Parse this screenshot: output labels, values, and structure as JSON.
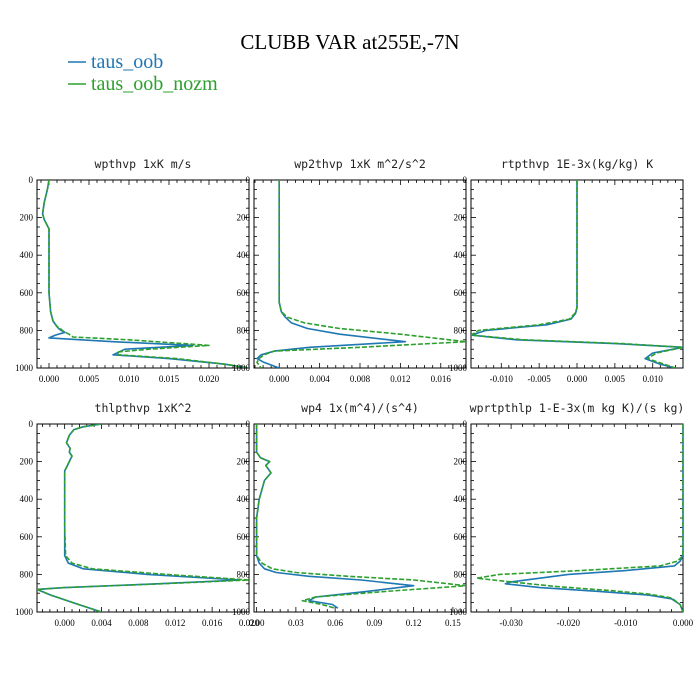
{
  "figure": {
    "title": "CLUBB VAR at255E,-7N"
  },
  "legend": [
    {
      "label": "taus_oob",
      "color": "#1f77b4",
      "dash": false
    },
    {
      "label": "taus_oob_nozm",
      "color": "#2ca02c",
      "dash": true
    }
  ],
  "chart_data": [
    {
      "type": "line",
      "title": "wpthvp  1xK m/s",
      "xlim": [
        -0.0015,
        0.025
      ],
      "ylim": [
        1000,
        0
      ],
      "xticks": [
        0.0,
        0.005,
        0.01,
        0.015,
        0.02
      ],
      "xtick_labels": [
        "0.000",
        "0.005",
        "0.010",
        "0.015",
        "0.020"
      ],
      "yticks": [
        0,
        200,
        400,
        600,
        800,
        1000
      ],
      "series": [
        {
          "name": "taus_oob",
          "color": "#1f77b4",
          "dash": false,
          "x": [
            0.0,
            -0.0002,
            -0.0006,
            -0.0008,
            -0.0006,
            0.0,
            0.0,
            0.0,
            0.0002,
            0.0005,
            0.001,
            0.0012,
            0.0015,
            0.002,
            0.0008,
            0.0,
            0.008,
            0.018,
            0.0095,
            0.008,
            0.015,
            0.022,
            0.025
          ],
          "y": [
            0,
            50,
            120,
            180,
            210,
            260,
            400,
            600,
            700,
            750,
            780,
            790,
            800,
            810,
            825,
            840,
            860,
            880,
            900,
            930,
            950,
            980,
            1000
          ]
        },
        {
          "name": "taus_oob_nozm",
          "color": "#2ca02c",
          "dash": true,
          "x": [
            0.0,
            -0.0002,
            -0.0006,
            -0.0008,
            -0.0006,
            0.0,
            0.0,
            0.0,
            0.0002,
            0.0005,
            0.001,
            0.0014,
            0.0018,
            0.0025,
            0.003,
            0.01,
            0.02,
            0.0125,
            0.0085,
            0.0087,
            0.016,
            0.022,
            0.025
          ],
          "y": [
            0,
            50,
            120,
            180,
            210,
            260,
            400,
            600,
            700,
            750,
            780,
            790,
            805,
            820,
            835,
            850,
            880,
            900,
            915,
            930,
            950,
            980,
            1000
          ]
        }
      ]
    },
    {
      "type": "line",
      "title": "wp2thvp  1xK m^2/s^2",
      "xlim": [
        -0.0025,
        0.0185
      ],
      "ylim": [
        1000,
        0
      ],
      "xticks": [
        0.0,
        0.004,
        0.008,
        0.012,
        0.016
      ],
      "xtick_labels": [
        "0.000",
        "0.004",
        "0.008",
        "0.012",
        "0.016"
      ],
      "yticks": [
        0,
        200,
        400,
        600,
        800,
        1000
      ],
      "series": [
        {
          "name": "taus_oob",
          "color": "#1f77b4",
          "dash": false,
          "x": [
            0.0,
            0.0,
            0.0,
            0.0,
            0.0002,
            0.0006,
            0.0012,
            0.0028,
            0.006,
            0.0125,
            0.003,
            -0.0005,
            -0.0018,
            -0.0022,
            -0.0015,
            0.0
          ],
          "y": [
            0,
            200,
            400,
            650,
            700,
            730,
            760,
            790,
            820,
            860,
            890,
            910,
            930,
            950,
            970,
            1000
          ]
        },
        {
          "name": "taus_oob_nozm",
          "color": "#2ca02c",
          "dash": true,
          "x": [
            0.0,
            0.0,
            0.0,
            0.0,
            0.0002,
            0.0008,
            0.0025,
            0.006,
            0.012,
            0.0185,
            0.008,
            -0.0005,
            -0.0015,
            -0.002,
            -0.0022,
            -0.0018
          ],
          "y": [
            0,
            200,
            400,
            650,
            700,
            730,
            760,
            790,
            820,
            860,
            890,
            910,
            930,
            950,
            970,
            1000
          ]
        }
      ]
    },
    {
      "type": "line",
      "title": "rtpthvp  1E-3x(kg/kg) K",
      "xlim": [
        -0.014,
        0.014
      ],
      "ylim": [
        1000,
        0
      ],
      "xticks": [
        -0.01,
        -0.005,
        0.0,
        0.005,
        0.01
      ],
      "xtick_labels": [
        "-0.010",
        "-0.005",
        "0.000",
        "0.005",
        "0.010"
      ],
      "yticks": [
        0,
        200,
        400,
        600,
        800,
        1000
      ],
      "series": [
        {
          "name": "taus_oob",
          "color": "#1f77b4",
          "dash": false,
          "x": [
            0.0,
            0.0,
            0.0,
            0.0,
            -0.0002,
            -0.0008,
            -0.004,
            -0.012,
            -0.014,
            -0.008,
            0.005,
            0.014,
            0.01,
            0.009,
            0.011,
            0.013
          ],
          "y": [
            0,
            200,
            400,
            680,
            710,
            740,
            770,
            800,
            825,
            850,
            870,
            890,
            920,
            950,
            980,
            1000
          ]
        },
        {
          "name": "taus_oob_nozm",
          "color": "#2ca02c",
          "dash": true,
          "x": [
            0.0,
            0.0,
            0.0,
            0.0,
            -0.0003,
            -0.001,
            -0.005,
            -0.013,
            -0.014,
            -0.007,
            0.006,
            0.014,
            0.0105,
            0.0093,
            0.0115,
            0.013
          ],
          "y": [
            0,
            200,
            400,
            680,
            710,
            740,
            770,
            800,
            825,
            850,
            870,
            890,
            920,
            950,
            980,
            1000
          ]
        }
      ]
    },
    {
      "type": "line",
      "title": "thlpthvp  1xK^2",
      "xlim": [
        -0.003,
        0.02
      ],
      "ylim": [
        1000,
        0
      ],
      "xticks": [
        0.0,
        0.004,
        0.008,
        0.012,
        0.016,
        0.02
      ],
      "xtick_labels": [
        "0.000",
        "0.004",
        "0.008",
        "0.012",
        "0.016",
        "0.020"
      ],
      "yticks": [
        0,
        200,
        400,
        600,
        800,
        1000
      ],
      "series": [
        {
          "name": "taus_oob",
          "color": "#1f77b4",
          "dash": false,
          "x": [
            0.004,
            0.002,
            0.001,
            0.0005,
            0.0002,
            0.0006,
            0.0005,
            0.0008,
            0.0005,
            0.0,
            0.0,
            0.0,
            0.0,
            0.0,
            0.0004,
            0.002,
            0.009,
            0.019,
            0.01,
            0.0,
            -0.003,
            -0.0015,
            0.0015,
            0.004
          ],
          "y": [
            0,
            15,
            30,
            60,
            100,
            130,
            150,
            170,
            200,
            250,
            300,
            400,
            550,
            700,
            740,
            770,
            800,
            830,
            850,
            870,
            880,
            910,
            960,
            1000
          ]
        },
        {
          "name": "taus_oob_nozm",
          "color": "#2ca02c",
          "dash": true,
          "x": [
            0.004,
            0.002,
            0.001,
            0.0005,
            0.0002,
            0.0006,
            0.0005,
            0.0008,
            0.0005,
            0.0,
            0.0,
            0.0,
            0.0,
            0.0001,
            0.0008,
            0.003,
            0.011,
            0.02,
            0.0105,
            0.0,
            -0.003,
            -0.0015,
            0.0015,
            0.004
          ],
          "y": [
            0,
            15,
            30,
            60,
            100,
            130,
            150,
            170,
            200,
            250,
            300,
            400,
            550,
            700,
            740,
            770,
            800,
            830,
            850,
            870,
            880,
            910,
            960,
            1000
          ]
        }
      ]
    },
    {
      "type": "line",
      "title": "wp4  1x(m^4)/(s^4)",
      "xlim": [
        -0.002,
        0.16
      ],
      "ylim": [
        1000,
        0
      ],
      "xticks": [
        0.0,
        0.03,
        0.06,
        0.09,
        0.12,
        0.15
      ],
      "xtick_labels": [
        "0.00",
        "0.03",
        "0.06",
        "0.09",
        "0.12",
        "0.15"
      ],
      "yticks": [
        0,
        200,
        400,
        600,
        800,
        1000
      ],
      "series": [
        {
          "name": "taus_oob",
          "color": "#1f77b4",
          "dash": false,
          "x": [
            0.0,
            0.0,
            0.003,
            0.01,
            0.007,
            0.011,
            0.006,
            0.002,
            0.0,
            0.0,
            0.002,
            0.006,
            0.015,
            0.04,
            0.08,
            0.12,
            0.085,
            0.045,
            0.04,
            0.058,
            0.062
          ],
          "y": [
            0,
            150,
            180,
            200,
            220,
            260,
            300,
            400,
            500,
            700,
            740,
            770,
            790,
            810,
            830,
            860,
            890,
            920,
            940,
            960,
            980
          ]
        },
        {
          "name": "taus_oob_nozm",
          "color": "#2ca02c",
          "dash": true,
          "x": [
            0.0,
            0.0,
            0.003,
            0.01,
            0.007,
            0.011,
            0.006,
            0.002,
            0.0,
            0.0,
            0.004,
            0.012,
            0.03,
            0.07,
            0.12,
            0.16,
            0.1,
            0.045,
            0.035,
            0.05,
            0.06
          ],
          "y": [
            0,
            150,
            180,
            200,
            220,
            260,
            300,
            400,
            500,
            700,
            740,
            770,
            790,
            810,
            830,
            860,
            890,
            920,
            940,
            960,
            980
          ]
        }
      ]
    },
    {
      "type": "line",
      "title": "wprtpthlp  1-E-3x(m kg K)/(s kg)",
      "xlim": [
        -0.037,
        0.0
      ],
      "ylim": [
        1000,
        0
      ],
      "xticks": [
        -0.03,
        -0.02,
        -0.01,
        0.0
      ],
      "xtick_labels": [
        "-0.030",
        "-0.020",
        "-0.010",
        "0.000"
      ],
      "yticks": [
        0,
        200,
        400,
        600,
        800,
        1000
      ],
      "series": [
        {
          "name": "taus_oob",
          "color": "#1f77b4",
          "dash": false,
          "x": [
            0.0,
            0.0,
            0.0,
            0.0,
            -0.0005,
            -0.0015,
            -0.01,
            -0.02,
            -0.03,
            -0.031,
            -0.025,
            -0.015,
            -0.006,
            -0.002,
            -0.0005,
            0.0
          ],
          "y": [
            0,
            200,
            400,
            700,
            730,
            755,
            780,
            800,
            840,
            850,
            870,
            890,
            910,
            930,
            960,
            1000
          ]
        },
        {
          "name": "taus_oob_nozm",
          "color": "#2ca02c",
          "dash": true,
          "x": [
            0.0,
            0.0,
            0.0,
            0.0,
            -0.001,
            -0.004,
            -0.018,
            -0.032,
            -0.036,
            -0.03,
            -0.022,
            -0.013,
            -0.006,
            -0.002,
            -0.0005,
            0.0
          ],
          "y": [
            0,
            200,
            400,
            700,
            730,
            755,
            780,
            800,
            820,
            840,
            865,
            885,
            905,
            925,
            960,
            1000
          ]
        }
      ]
    }
  ]
}
